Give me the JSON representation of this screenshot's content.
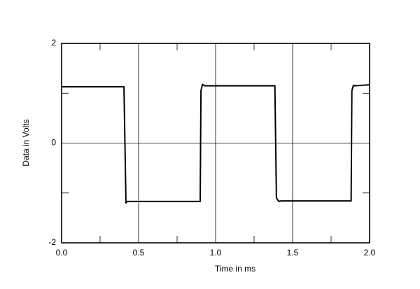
{
  "chart_data": {
    "type": "line",
    "xlabel": "Time in ms",
    "ylabel": "Data in Volts",
    "x": [
      0,
      0.405,
      0.418,
      0.425,
      0.9,
      0.905,
      0.915,
      0.93,
      1.385,
      1.395,
      1.41,
      1.425,
      1.88,
      1.885,
      1.895,
      1.91,
      2.0
    ],
    "series": [
      {
        "color": "#000000",
        "values": [
          1.13,
          1.13,
          -1.2,
          -1.17,
          -1.17,
          1.05,
          1.18,
          1.15,
          1.15,
          -1.1,
          -1.17,
          -1.16,
          -1.16,
          1.05,
          1.16,
          1.15,
          1.17
        ]
      }
    ],
    "xlim": [
      0,
      2.0
    ],
    "xticks": [
      {
        "value": 0,
        "label": "0.0"
      },
      0.5,
      {
        "value": 1,
        "label": "1.0"
      },
      1.5,
      {
        "value": 2,
        "label": "2.0"
      }
    ],
    "xminorticks": [
      0.25,
      0.75,
      1.25,
      1.75
    ],
    "ylim": [
      -2,
      2
    ],
    "yticks": [
      -2,
      0,
      2
    ],
    "yminorticks": [
      -1,
      1
    ],
    "grid": true
  }
}
